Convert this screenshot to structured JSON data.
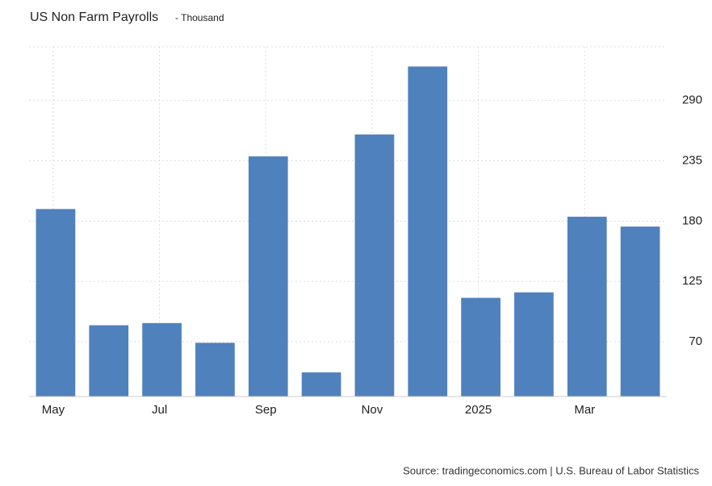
{
  "chart_data": {
    "type": "bar",
    "title": "US Non Farm Payrolls",
    "subtitle": "- Thousand",
    "source": "Source: tradingeconomics.com | U.S. Bureau of Labor Statistics",
    "categories": [
      "May",
      null,
      "Jul",
      null,
      "Sep",
      null,
      "Nov",
      null,
      "2025",
      null,
      "Mar",
      null
    ],
    "values": [
      191,
      85,
      87,
      69,
      239,
      42,
      259,
      321,
      110,
      115,
      184,
      175
    ],
    "color": "#4f81bd",
    "ylim": [
      20,
      339
    ],
    "yticks": [
      70,
      125,
      180,
      235,
      290
    ],
    "grid": true
  }
}
